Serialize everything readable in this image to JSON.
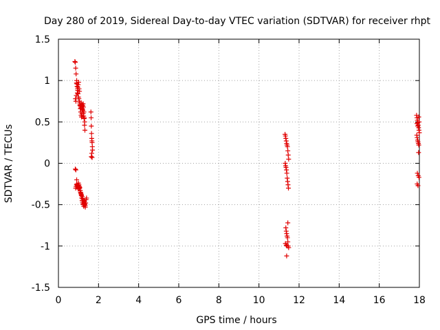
{
  "chart_data": {
    "type": "scatter",
    "title": "Day 280 of 2019, Sidereal Day-to-day VTEC variation (SDTVAR) for receiver rhpt",
    "xlabel": "GPS time / hours",
    "ylabel": "SDTVAR / TECUs",
    "xlim": [
      0,
      18
    ],
    "ylim": [
      -1.5,
      1.5
    ],
    "xticks": [
      0,
      2,
      4,
      6,
      8,
      10,
      12,
      14,
      16,
      18
    ],
    "xtick_labels": [
      "0",
      "2",
      "4",
      "6",
      "8",
      "10",
      "12",
      "14",
      "16",
      "18"
    ],
    "yticks": [
      -1.5,
      -1,
      -0.5,
      0,
      0.5,
      1,
      1.5
    ],
    "ytick_labels": [
      "-1.5",
      "-1",
      "-0.5",
      "0",
      "0.5",
      "1",
      "1.5"
    ],
    "grid": true,
    "marker": "+",
    "color": "#e00000",
    "series": [
      {
        "name": "SDTVAR",
        "x": [
          0.82,
          0.84,
          0.86,
          0.88,
          0.85,
          0.87,
          0.89,
          0.9,
          0.91,
          0.92,
          0.93,
          0.95,
          0.96,
          0.98,
          1.0,
          1.02,
          1.04,
          1.06,
          1.08,
          1.1,
          1.12,
          0.94,
          0.97,
          0.99,
          1.01,
          1.03,
          1.05,
          1.07,
          1.09,
          1.11,
          1.13,
          1.15,
          1.17,
          1.19,
          1.21,
          1.23,
          1.25,
          1.27,
          1.29,
          1.31,
          1.14,
          1.16,
          1.18,
          1.2,
          1.22,
          1.24,
          1.26,
          1.28,
          1.3,
          1.32,
          0.86,
          0.88,
          0.9,
          0.92,
          0.94,
          0.96,
          0.98,
          1.0,
          1.02,
          1.04,
          1.06,
          1.08,
          1.1,
          1.12,
          1.14,
          1.16,
          1.18,
          1.2,
          1.22,
          1.24,
          1.26,
          1.28,
          1.3,
          1.32,
          1.34,
          1.0,
          1.03,
          1.06,
          1.09,
          1.12,
          1.15,
          1.18,
          1.21,
          1.24,
          1.27,
          1.3,
          1.33,
          1.36,
          1.38,
          1.4,
          0.84,
          0.87,
          0.91,
          1.62,
          1.63,
          1.64,
          1.65,
          1.66,
          1.67,
          1.68,
          1.69,
          1.7,
          1.66,
          1.64,
          1.68,
          11.3,
          11.32,
          11.34,
          11.36,
          11.38,
          11.4,
          11.42,
          11.44,
          11.46,
          11.48,
          11.31,
          11.33,
          11.35,
          11.37,
          11.39,
          11.41,
          11.43,
          11.45,
          11.47,
          11.34,
          11.36,
          11.38,
          11.4,
          11.42,
          11.44,
          11.46,
          11.48,
          11.32,
          11.36,
          11.4,
          11.44,
          11.38,
          17.86,
          17.88,
          17.9,
          17.92,
          17.94,
          17.96,
          17.98,
          18.0,
          17.87,
          17.89,
          17.91,
          17.93,
          17.95,
          17.97,
          17.99,
          17.88,
          17.92,
          17.96,
          17.9,
          17.94,
          17.98,
          17.89,
          17.93,
          17.97
        ],
        "y": [
          1.23,
          1.22,
          1.15,
          1.08,
          0.78,
          0.75,
          0.82,
          0.97,
          1.0,
          0.96,
          0.93,
          0.9,
          0.88,
          0.84,
          0.8,
          0.78,
          0.75,
          0.73,
          0.71,
          0.69,
          0.67,
          0.85,
          0.92,
          0.95,
          0.98,
          0.9,
          0.87,
          0.7,
          0.66,
          0.62,
          0.58,
          0.56,
          0.6,
          0.65,
          0.7,
          0.72,
          0.68,
          0.62,
          0.55,
          0.5,
          0.73,
          0.71,
          0.69,
          0.66,
          0.64,
          0.6,
          0.57,
          0.54,
          0.46,
          0.4,
          -0.3,
          -0.28,
          -0.26,
          -0.25,
          -0.27,
          -0.29,
          -0.31,
          -0.24,
          -0.26,
          -0.28,
          -0.3,
          -0.33,
          -0.35,
          -0.37,
          -0.39,
          -0.42,
          -0.45,
          -0.47,
          -0.49,
          -0.5,
          -0.52,
          -0.48,
          -0.46,
          -0.5,
          -0.53,
          -0.27,
          -0.31,
          -0.29,
          -0.33,
          -0.36,
          -0.38,
          -0.4,
          -0.43,
          -0.45,
          -0.47,
          -0.49,
          -0.51,
          -0.48,
          -0.44,
          -0.42,
          -0.07,
          -0.08,
          -0.2,
          0.62,
          0.55,
          0.45,
          0.36,
          0.3,
          0.27,
          0.25,
          0.2,
          0.16,
          0.12,
          0.08,
          0.07,
          0.35,
          0.33,
          0.3,
          0.27,
          0.24,
          0.22,
          0.2,
          0.15,
          0.1,
          0.05,
          0.0,
          -0.03,
          -0.05,
          -0.08,
          -0.12,
          -0.18,
          -0.22,
          -0.26,
          -0.3,
          -0.78,
          -0.82,
          -0.85,
          -0.88,
          -0.9,
          -0.95,
          -1.0,
          -1.02,
          -0.97,
          -0.99,
          -1.0,
          -0.72,
          -1.12,
          0.58,
          0.55,
          0.52,
          0.49,
          0.46,
          0.43,
          0.4,
          0.37,
          0.34,
          0.31,
          0.28,
          0.26,
          0.24,
          0.22,
          0.5,
          0.48,
          0.45,
          0.13,
          -0.12,
          -0.15,
          -0.17,
          -0.25,
          -0.27,
          0.56
        ]
      }
    ]
  }
}
